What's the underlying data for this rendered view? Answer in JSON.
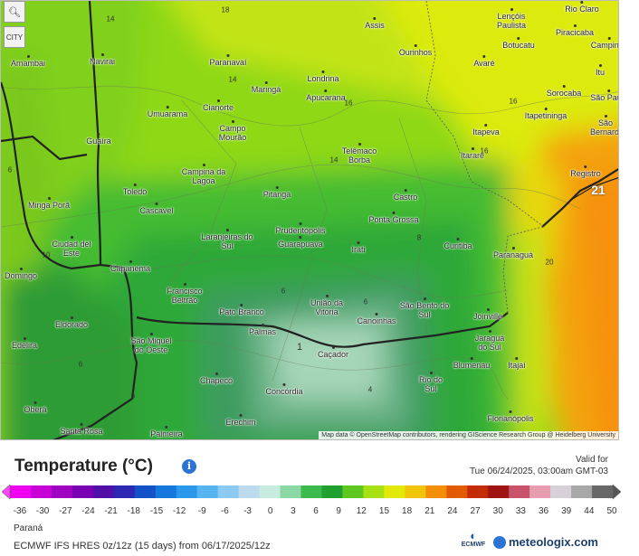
{
  "map": {
    "zoom_icon": "magnifier-icon",
    "city_toggle_label": "CITY",
    "attribution": "Map data © OpenStreetMap contributors, rendering GIScience Research Group @ Heidelberg University",
    "cities": [
      "Assis",
      "Lençóis Paulista",
      "Rio Claro",
      "Piracicaba",
      "Campinas",
      "Botucatu",
      "Ourinhos",
      "Amambai",
      "Navirai",
      "Paranavaí",
      "Avaré",
      "Itu",
      "Londrina",
      "Maringá",
      "Apucarana",
      "Sorocaba",
      "São Paulo",
      "Itapetininga",
      "São Bernardo",
      "Umuarama",
      "Cianorte",
      "Campo Mourão",
      "Itapeva",
      "Guaíra",
      "Telêmaco Borba",
      "Itararé",
      "Registro",
      "Campina da Lagoa",
      "Toledo",
      "Pitanga",
      "Castro",
      "Minga Porã",
      "Cascavel",
      "Ponta Grossa",
      "Prudentópolis",
      "Laranjeiras do Sul",
      "Guarapuava",
      "Irati",
      "Curitiba",
      "Ciudad del Este",
      "Paranaguá",
      "Domingo",
      "Capanema",
      "Francisco Beltrão",
      "União da Vitória",
      "São Bento do Sul",
      "Pato Branco",
      "Canoinhas",
      "Joinville",
      "Eldorado",
      "Palmas",
      "Edelira",
      "São Miguel do Oeste",
      "Caçador",
      "Jaraguá do Sul",
      "Blumenau",
      "Itajaí",
      "Chapecó",
      "Rio do Sul",
      "Concórdia",
      "Oberá",
      "Erechim",
      "Florianópolis",
      "Santa Rosa",
      "Palmeira"
    ],
    "isotherm_labels": [
      "18",
      "14",
      "14",
      "16",
      "16",
      "14",
      "16",
      "21",
      "20",
      "10",
      "8",
      "6",
      "6",
      "6",
      "4",
      "1",
      "6",
      "6"
    ]
  },
  "legend": {
    "title": "Temperature (°C)",
    "info_icon": "info-icon",
    "valid_label": "Valid for",
    "valid_time": "Tue 06/24/2025, 03:00am GMT-03",
    "ticks": [
      "-36",
      "-30",
      "-27",
      "-24",
      "-21",
      "-18",
      "-15",
      "-12",
      "-9",
      "-6",
      "-3",
      "0",
      "3",
      "6",
      "9",
      "12",
      "15",
      "18",
      "21",
      "24",
      "27",
      "30",
      "33",
      "36",
      "39",
      "44",
      "50"
    ],
    "colors": [
      "#f000f0",
      "#c800d8",
      "#a000c0",
      "#7a00b4",
      "#5010a8",
      "#2c28b4",
      "#1450c8",
      "#1478dc",
      "#2c98ec",
      "#56b4f0",
      "#8ccaf2",
      "#bcdcee",
      "#c6ece0",
      "#8ad8a4",
      "#3cba50",
      "#1fa030",
      "#5ec820",
      "#a8e014",
      "#e2ea0c",
      "#f0c408",
      "#f48e06",
      "#e25c06",
      "#c42c08",
      "#a01414",
      "#c8546c",
      "#e89cb0",
      "#d8d0d8",
      "#a8a8a8",
      "#686868"
    ]
  },
  "footer": {
    "region": "Paraná",
    "model": "ECMWF IFS HRES 0z/12z (15 days) from 06/17/2025/12z",
    "ecmwf_label": "ECMWF",
    "brand": "meteologix.com"
  }
}
